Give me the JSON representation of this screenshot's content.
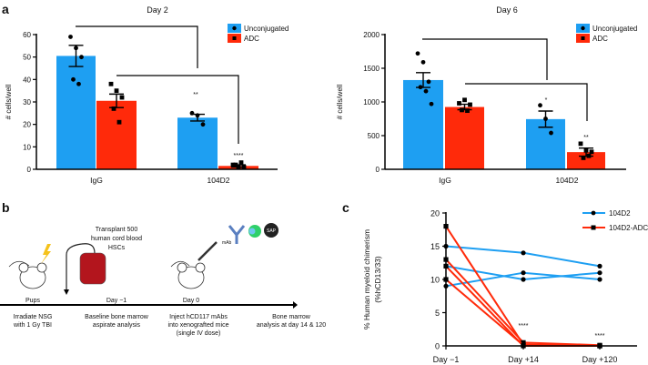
{
  "panel_labels": {
    "a": "a",
    "b": "b",
    "c": "c"
  },
  "colors": {
    "unconjugated": "#1e9ff2",
    "adc": "#ff2a0a",
    "axis": "#000000"
  },
  "chart_data": [
    {
      "type": "bar",
      "title": "Day 2",
      "ylabel": "# cells/well",
      "ylim": [
        0,
        60
      ],
      "yticks": [
        0,
        10,
        20,
        30,
        40,
        50,
        60
      ],
      "categories": [
        "IgG",
        "104D2"
      ],
      "legend": [
        "Unconjugated",
        "ADC"
      ],
      "legend_position": "top-right",
      "series": [
        {
          "name": "Unconjugated",
          "values": [
            50.5,
            23
          ],
          "sem": [
            4.7,
            1.5
          ],
          "points": [
            [
              59,
              54,
              50,
              40,
              38
            ],
            [
              25,
              24,
              20
            ]
          ]
        },
        {
          "name": "ADC",
          "values": [
            30.5,
            1.5
          ],
          "sem": [
            3,
            0.5
          ],
          "points": [
            [
              38,
              35,
              32,
              27,
              21
            ],
            [
              2,
              1,
              1,
              2,
              3
            ]
          ]
        }
      ],
      "annotations": [
        "**",
        "****"
      ]
    },
    {
      "type": "bar",
      "title": "Day 6",
      "ylabel": "# cells/well",
      "ylim": [
        0,
        2000
      ],
      "yticks": [
        0,
        500,
        1000,
        1500,
        2000
      ],
      "categories": [
        "IgG",
        "104D2"
      ],
      "legend": [
        "Unconjugated",
        "ADC"
      ],
      "legend_position": "top-right",
      "series": [
        {
          "name": "Unconjugated",
          "values": [
            1325,
            745
          ],
          "sem": [
            110,
            120
          ],
          "points": [
            [
              1720,
              1590,
              1300,
              1220,
              1160,
              970
            ],
            [
              950,
              750,
              540
            ]
          ]
        },
        {
          "name": "ADC",
          "values": [
            925,
            255
          ],
          "sem": [
            40,
            60
          ],
          "points": [
            [
              980,
              1030,
              960,
              880,
              870
            ],
            [
              380,
              280,
              260,
              170,
              200
            ]
          ]
        }
      ],
      "annotations": [
        "*",
        "**"
      ]
    },
    {
      "type": "line",
      "ylabel": "% Human myeloid chimerism (%hCD13/33)",
      "ylabel_line1": "% Human myeloid chimerism",
      "ylabel_line2": "(%hCD13/33)",
      "ylim": [
        0,
        20
      ],
      "yticks": [
        0,
        5,
        10,
        15,
        20
      ],
      "x": [
        "Day −1",
        "Day +14",
        "Day +120"
      ],
      "legend": [
        "104D2",
        "104D2-ADC"
      ],
      "legend_position": "top-right",
      "series": [
        {
          "name": "104D2",
          "lines": [
            [
              15,
              14,
              12
            ],
            [
              12,
              10,
              11
            ],
            [
              9,
              11,
              10
            ]
          ]
        },
        {
          "name": "104D2-ADC",
          "lines": [
            [
              18,
              0.2,
              0
            ],
            [
              13,
              0.5,
              0.1
            ],
            [
              12,
              0,
              0
            ],
            [
              10,
              0.1,
              0
            ]
          ]
        }
      ],
      "annotations": [
        "****",
        "****"
      ]
    }
  ],
  "schematic": {
    "pups": "Pups",
    "transplant": [
      "Transplant 500",
      "human cord blood",
      "HSCs"
    ],
    "day_minus1": "Day −1",
    "day0": "Day 0",
    "mab": "mAb",
    "sap": "SAP",
    "steps": [
      [
        "Irradiate NSG",
        "with 1 Gy TBI"
      ],
      [
        "Baseline bone marrow",
        "aspirate analysis"
      ],
      [
        "Inject hCD117 mAbs",
        "into xenografted mice",
        "(single IV dose)"
      ],
      [
        "Bone marrow",
        "analysis at day 14 & 120"
      ]
    ]
  }
}
